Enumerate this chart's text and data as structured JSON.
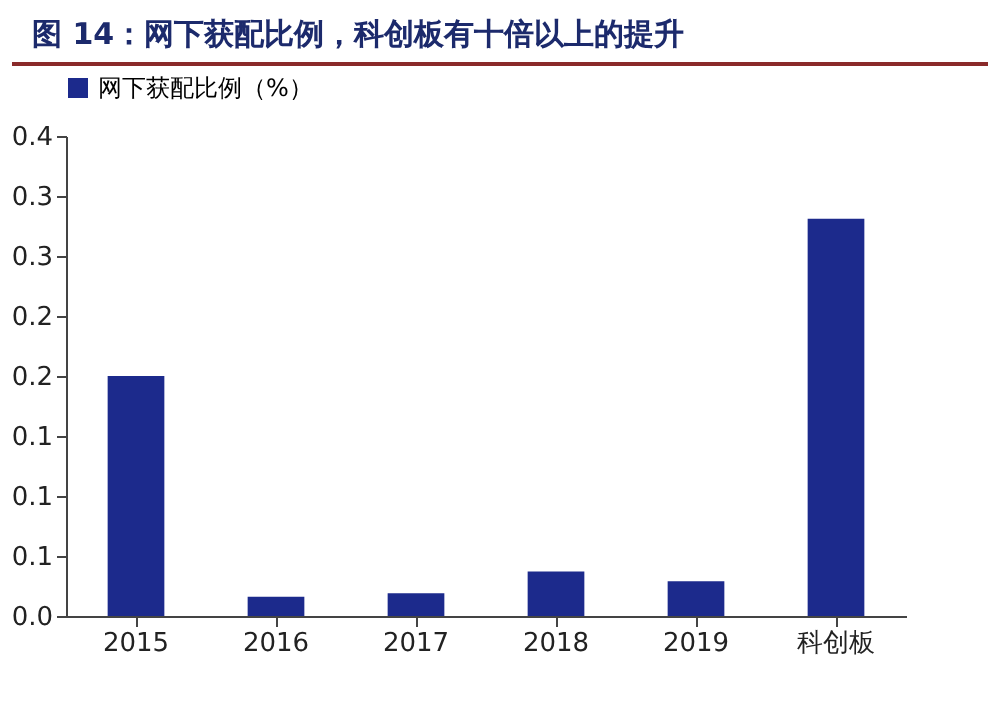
{
  "chart_data": {
    "type": "bar",
    "title": "图 14：网下获配比例，科创板有十倍以上的提升",
    "categories": [
      "2015",
      "2016",
      "2017",
      "2018",
      "2019",
      "科创板"
    ],
    "series": [
      {
        "name": "网下获配比例（%）",
        "color": "#1c2a8c",
        "values": [
          0.2,
          0.016,
          0.019,
          0.037,
          0.029,
          0.331
        ]
      }
    ],
    "ylim": [
      0,
      0.4
    ],
    "yticks": [
      {
        "value": 0,
        "label": "0.0"
      },
      {
        "value": 0.05,
        "label": "0.1"
      },
      {
        "value": 0.1,
        "label": "0.1"
      },
      {
        "value": 0.15,
        "label": "0.1"
      },
      {
        "value": 0.2,
        "label": "0.2"
      },
      {
        "value": 0.25,
        "label": "0.2"
      },
      {
        "value": 0.3,
        "label": "0.3"
      },
      {
        "value": 0.35,
        "label": "0.3"
      },
      {
        "value": 0.4,
        "label": "0.4"
      }
    ],
    "legend": "top",
    "grid": false
  }
}
